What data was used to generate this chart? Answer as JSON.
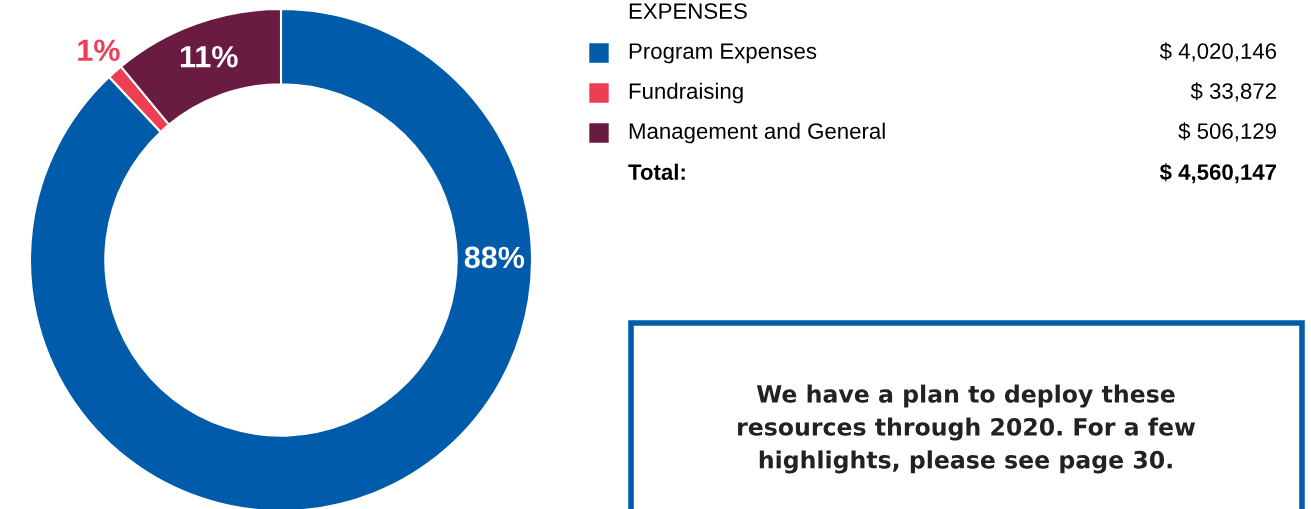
{
  "chart_data": {
    "type": "donut",
    "legend_title": "EXPENSES",
    "categories": [
      "Program Expenses",
      "Fundraising",
      "Management and General"
    ],
    "values": [
      88,
      1,
      11
    ],
    "colors": [
      "#005baa",
      "#ee3e54",
      "#6a1b41"
    ],
    "value_labels": [
      "88%",
      "1%",
      "11%"
    ],
    "legend": "right",
    "annotations": [
      "$ 4,020,146",
      "$ 33,872",
      "$ 506,129",
      "Total:",
      "$ 4,560,147",
      "We have a plan to deploy these\nresources through 2020. For a few\nhighlights, please see page 30."
    ]
  }
}
